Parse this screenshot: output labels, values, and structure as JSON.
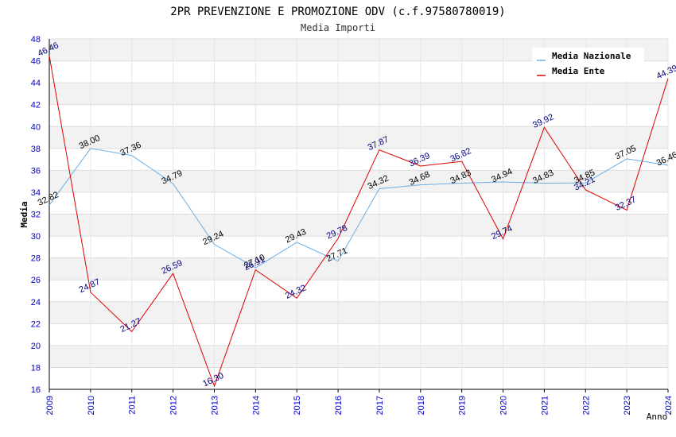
{
  "chart_data": {
    "type": "line",
    "title": "2PR PREVENZIONE E PROMOZIONE ODV (c.f.97580780019)",
    "subtitle": "Media Importi",
    "ylabel": "Media",
    "xlabel": "Anno",
    "ylim": [
      16,
      48
    ],
    "yticks": [
      16,
      18,
      20,
      22,
      24,
      26,
      28,
      30,
      32,
      34,
      36,
      38,
      40,
      42,
      44,
      46,
      48
    ],
    "categories": [
      "2009",
      "2010",
      "2011",
      "2012",
      "2013",
      "2014",
      "2015",
      "2016",
      "2017",
      "2018",
      "2019",
      "2020",
      "2021",
      "2022",
      "2023",
      "2024"
    ],
    "legend_position": "top-right",
    "grid": true,
    "series": [
      {
        "name": "Media Nazionale",
        "color": "#6aaee6",
        "label_color": "#000000",
        "values": [
          32.82,
          38.0,
          37.36,
          34.79,
          29.24,
          27.1,
          29.43,
          27.71,
          34.32,
          34.68,
          34.83,
          34.94,
          34.83,
          34.85,
          37.05,
          36.46
        ],
        "labels": [
          "32.82",
          "38.00",
          "37.36",
          "34.79",
          "29.24",
          "27.10",
          "29.43",
          "27.71",
          "34.32",
          "34.68",
          "34.83",
          "34.94",
          "34.83",
          "34.85",
          "37.05",
          "36.46"
        ]
      },
      {
        "name": "Media Ente",
        "color": "#dd0000",
        "label_color": "#000080",
        "values": [
          46.46,
          24.87,
          21.27,
          26.59,
          16.3,
          26.91,
          24.32,
          29.78,
          37.87,
          36.39,
          36.82,
          29.74,
          39.92,
          34.21,
          32.37,
          44.39
        ],
        "labels": [
          "46.46",
          "24.87",
          "21.27",
          "26.59",
          "16.30",
          "26.91",
          "24.32",
          "29.78",
          "37.87",
          "36.39",
          "36.82",
          "29.74",
          "39.92",
          "34.21",
          "32.37",
          "44.39"
        ]
      }
    ]
  }
}
